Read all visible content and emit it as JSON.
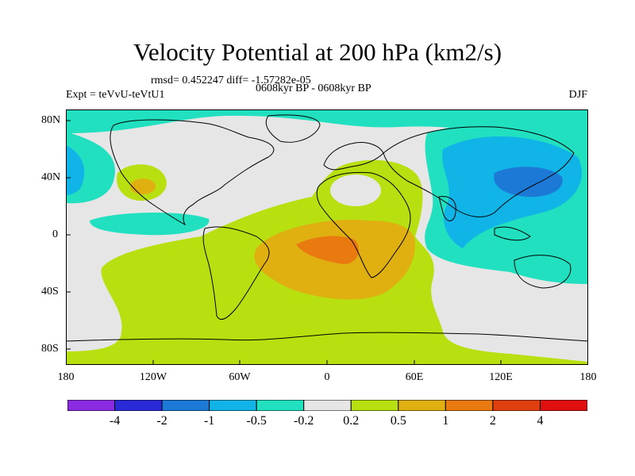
{
  "title": "Velocity Potential at 200 hPa (km2/s)",
  "stats": "rmsd= 0.452247 diff= -1.57282e-05",
  "experiment": "Expt = teVvU-teVtU1",
  "period": "0608kyr BP - 0608kyr BP",
  "season": "DJF",
  "lat_labels": [
    "80N",
    "40N",
    "0",
    "40S",
    "80S"
  ],
  "lon_labels": [
    "180",
    "120W",
    "60W",
    "0",
    "60E",
    "120E",
    "180"
  ],
  "colorbar": {
    "labels": [
      "-4",
      "-2",
      "-1",
      "-0.5",
      "-0.2",
      "0.2",
      "0.5",
      "1",
      "2",
      "4"
    ],
    "colors": [
      "#8a2be2",
      "#2a2ad8",
      "#1c7ad6",
      "#10b4e6",
      "#20e0c0",
      "#e6e6e6",
      "#b8e010",
      "#e0b010",
      "#e87a10",
      "#e04010",
      "#e01010"
    ]
  },
  "chart_data": {
    "type": "heatmap",
    "title": "Velocity Potential at 200 hPa (km2/s)",
    "variable": "velocity potential difference",
    "units": "km2/s",
    "lon_range": [
      -180,
      180
    ],
    "lat_range": [
      -90,
      90
    ],
    "levels": [
      -4,
      -2,
      -1,
      -0.5,
      -0.2,
      0.2,
      0.5,
      1,
      2,
      4
    ],
    "rmsd": 0.452247,
    "diff": -1.57282e-05,
    "features": [
      {
        "region": "Western Pacific / East Asia",
        "sign": "negative",
        "min_level": -1
      },
      {
        "region": "South America / South Atlantic / Africa",
        "sign": "positive",
        "max_level": 1
      },
      {
        "region": "Mexico",
        "sign": "positive",
        "max_level": 0.5
      },
      {
        "region": "Arctic",
        "sign": "negative",
        "min_level": -0.5
      }
    ]
  }
}
